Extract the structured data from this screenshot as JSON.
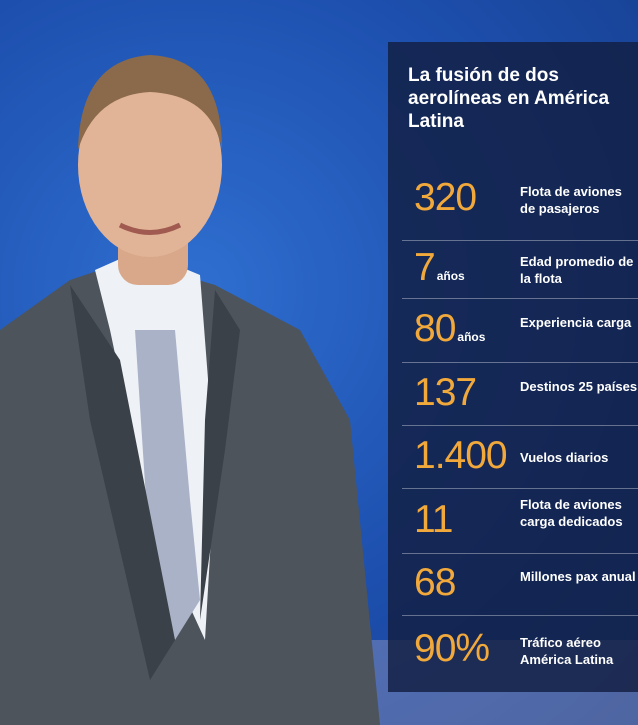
{
  "title": "La fusión de dos aerolíneas en América Latina",
  "stats": [
    {
      "value": "320",
      "label": "Flota de aviones de pasajeros"
    },
    {
      "value": "7",
      "unit": "años",
      "label": "Edad promedio de la flota"
    },
    {
      "value": "80",
      "unit": "años",
      "label": "Experiencia carga"
    },
    {
      "value": "137",
      "label": "Destinos 25 países"
    },
    {
      "value": "1.400",
      "label": "Vuelos diarios"
    },
    {
      "value": "11",
      "label": "Flota de aviones carga dedicados"
    },
    {
      "value": "68",
      "label": "Millones pax anual"
    },
    {
      "value": "90%",
      "label": "Tráfico aéreo América Latina"
    }
  ]
}
